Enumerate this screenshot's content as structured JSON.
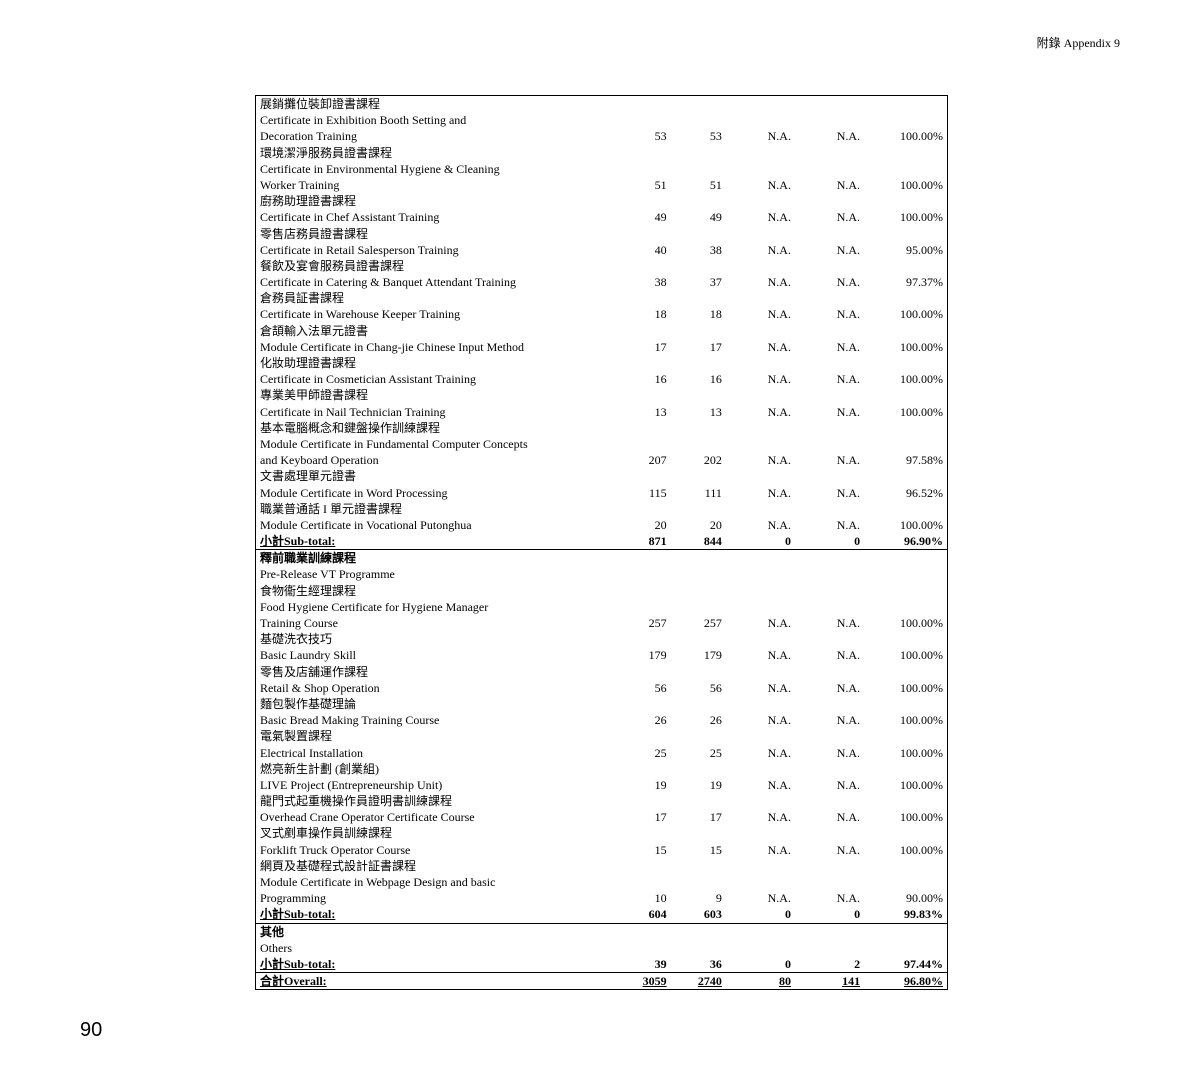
{
  "header": {
    "appendix": "附錄  Appendix 9"
  },
  "page_number": "90",
  "section1_rows": [
    {
      "zh": "展銷攤位裝卸證書課程",
      "en": "Certificate in Exhibition Booth Setting and Decoration Training",
      "c1": "53",
      "c2": "53",
      "c3": "N.A.",
      "c4": "N.A.",
      "c5": "100.00%"
    },
    {
      "zh": "環境潔淨服務員證書課程",
      "en": "Certificate in Environmental Hygiene & Cleaning Worker Training",
      "c1": "51",
      "c2": "51",
      "c3": "N.A.",
      "c4": "N.A.",
      "c5": "100.00%"
    },
    {
      "zh": "廚務助理證書課程",
      "en": "Certificate in Chef Assistant Training",
      "c1": "49",
      "c2": "49",
      "c3": "N.A.",
      "c4": "N.A.",
      "c5": "100.00%"
    },
    {
      "zh": "零售店務員證書課程",
      "en": "Certificate in Retail Salesperson Training",
      "c1": "40",
      "c2": "38",
      "c3": "N.A.",
      "c4": "N.A.",
      "c5": "95.00%"
    },
    {
      "zh": "餐飲及宴會服務員證書課程",
      "en": "Certificate in Catering & Banquet Attendant Training",
      "c1": "38",
      "c2": "37",
      "c3": "N.A.",
      "c4": "N.A.",
      "c5": "97.37%"
    },
    {
      "zh": "倉務員証書課程",
      "en": "Certificate in Warehouse Keeper Training",
      "c1": "18",
      "c2": "18",
      "c3": "N.A.",
      "c4": "N.A.",
      "c5": "100.00%"
    },
    {
      "zh": "倉頡輸入法單元證書",
      "en": "Module Certificate in Chang-jie Chinese Input Method",
      "c1": "17",
      "c2": "17",
      "c3": "N.A.",
      "c4": "N.A.",
      "c5": "100.00%"
    },
    {
      "zh": "化妝助理證書課程",
      "en": "Certificate in Cosmetician Assistant Training",
      "c1": "16",
      "c2": "16",
      "c3": "N.A.",
      "c4": "N.A.",
      "c5": "100.00%"
    },
    {
      "zh": "專業美甲師證書課程",
      "en": "Certificate in Nail Technician Training",
      "c1": "13",
      "c2": "13",
      "c3": "N.A.",
      "c4": "N.A.",
      "c5": "100.00%"
    },
    {
      "zh": "基本電腦概念和鍵盤操作訓練課程",
      "en": "Module Certificate in Fundamental Computer Concepts and Keyboard Operation",
      "c1": "207",
      "c2": "202",
      "c3": "N.A.",
      "c4": "N.A.",
      "c5": "97.58%"
    },
    {
      "zh": "文書處理單元證書",
      "en": "Module Certificate in Word Processing",
      "c1": "115",
      "c2": "111",
      "c3": "N.A.",
      "c4": "N.A.",
      "c5": "96.52%"
    },
    {
      "zh": "職業普通話 I 單元證書課程",
      "en": "Module Certificate in Vocational Putonghua",
      "c1": "20",
      "c2": "20",
      "c3": "N.A.",
      "c4": "N.A.",
      "c5": "100.00%"
    }
  ],
  "section1_subtotal": {
    "label": "小計Sub-total:",
    "c1": "871",
    "c2": "844",
    "c3": "0",
    "c4": "0",
    "c5": "96.90%"
  },
  "section2_head": {
    "zh": "釋前職業訓練課程",
    "en": "Pre-Release VT Programme"
  },
  "section2_rows": [
    {
      "zh": "食物衞生經理課程",
      "en": "Food Hygiene Certificate for Hygiene Manager Training Course",
      "c1": "257",
      "c2": "257",
      "c3": "N.A.",
      "c4": "N.A.",
      "c5": "100.00%"
    },
    {
      "zh": "基礎洗衣技巧",
      "en": "Basic Laundry Skill",
      "c1": "179",
      "c2": "179",
      "c3": "N.A.",
      "c4": "N.A.",
      "c5": "100.00%"
    },
    {
      "zh": "零售及店舖運作課程",
      "en": "Retail & Shop Operation",
      "c1": "56",
      "c2": "56",
      "c3": "N.A.",
      "c4": "N.A.",
      "c5": "100.00%"
    },
    {
      "zh": "麵包製作基礎理論",
      "en": "Basic Bread Making Training Course",
      "c1": "26",
      "c2": "26",
      "c3": "N.A.",
      "c4": "N.A.",
      "c5": "100.00%"
    },
    {
      "zh": "電氣製置課程",
      "en": "Electrical Installation",
      "c1": "25",
      "c2": "25",
      "c3": "N.A.",
      "c4": "N.A.",
      "c5": "100.00%"
    },
    {
      "zh": "燃亮新生計劃 (創業組)",
      "en": "LIVE Project (Entrepreneurship Unit)",
      "c1": "19",
      "c2": "19",
      "c3": "N.A.",
      "c4": "N.A.",
      "c5": "100.00%"
    },
    {
      "zh": "龍門式起重機操作員證明書訓練課程",
      "en": "Overhead Crane Operator Certificate Course",
      "c1": "17",
      "c2": "17",
      "c3": "N.A.",
      "c4": "N.A.",
      "c5": "100.00%"
    },
    {
      "zh": "叉式剷車操作員訓練課程",
      "en": "Forklift Truck Operator Course",
      "c1": "15",
      "c2": "15",
      "c3": "N.A.",
      "c4": "N.A.",
      "c5": "100.00%"
    },
    {
      "zh": "網頁及基礎程式設計証書課程",
      "en": "Module Certificate in Webpage Design and basic Programming",
      "c1": "10",
      "c2": "9",
      "c3": "N.A.",
      "c4": "N.A.",
      "c5": "90.00%"
    }
  ],
  "section2_subtotal": {
    "label": "小計Sub-total:",
    "c1": "604",
    "c2": "603",
    "c3": "0",
    "c4": "0",
    "c5": "99.83%"
  },
  "section3_head": {
    "zh": "其他",
    "en": "Others"
  },
  "section3_subtotal": {
    "label": "小計Sub-total:",
    "c1": "39",
    "c2": "36",
    "c3": "0",
    "c4": "2",
    "c5": "97.44%"
  },
  "overall": {
    "label": "合計Overall:",
    "c1": "3059",
    "c2": "2740",
    "c3": "80",
    "c4": "141",
    "c5": "96.80%"
  }
}
